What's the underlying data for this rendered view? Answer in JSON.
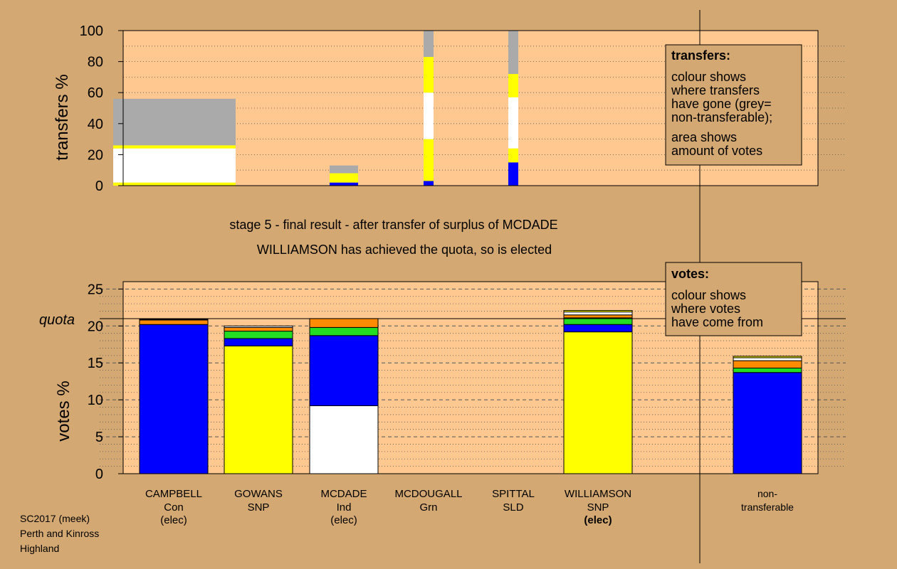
{
  "colors": {
    "background": "#d4a872",
    "plot_area": "#ffc890",
    "legend_box": "#d4a872",
    "Con": "#0000ff",
    "SNP": "#ffff00",
    "Ind": "#ffffff",
    "Grn": "#22dd22",
    "LD": "#ff8c00",
    "non_transferable": "#aaaaaa"
  },
  "captions": {
    "stage_line": "stage 5 - final result - after transfer of surplus of MCDADE",
    "elected_line": "WILLIAMSON has achieved the quota, so is elected",
    "footer": [
      "SC2017 (meek)",
      "Perth and Kinross",
      "Highland"
    ],
    "quota_label": "quota"
  },
  "legends": {
    "transfers": {
      "title": "transfers:",
      "lines1": [
        "colour shows",
        "where transfers",
        "have gone (grey=",
        "non-transferable);"
      ],
      "lines2": [
        "area shows",
        "amount of votes"
      ]
    },
    "votes": {
      "title": "votes:",
      "lines": [
        "colour shows",
        "where votes",
        "have come from"
      ]
    }
  },
  "chart_data": [
    {
      "type": "bar",
      "ylabel": "transfers %",
      "ylim": [
        0,
        100
      ],
      "yticks": [
        "0",
        "20",
        "40",
        "60",
        "80",
        "100"
      ],
      "grid": "dotted",
      "columns": [
        {
          "key": "campbell",
          "width_share": 1.0,
          "stack": [
            {
              "party": "SNP",
              "value": 2
            },
            {
              "party": "Ind",
              "value": 22
            },
            {
              "party": "SNP",
              "value": 2
            },
            {
              "party": "non_transferable",
              "value": 30
            }
          ]
        },
        {
          "key": "mcdade",
          "width_share": 0.24,
          "stack": [
            {
              "party": "Con",
              "value": 2
            },
            {
              "party": "SNP",
              "value": 6
            },
            {
              "party": "non_transferable",
              "value": 5
            }
          ]
        },
        {
          "key": "mcdougall",
          "width_share": 0.09,
          "stack": [
            {
              "party": "Con",
              "value": 3
            },
            {
              "party": "SNP",
              "value": 27
            },
            {
              "party": "Ind",
              "value": 30
            },
            {
              "party": "SNP",
              "value": 23
            },
            {
              "party": "non_transferable",
              "value": 17
            }
          ]
        },
        {
          "key": "spittal",
          "width_share": 0.09,
          "stack": [
            {
              "party": "Con",
              "value": 15
            },
            {
              "party": "SNP",
              "value": 9
            },
            {
              "party": "Ind",
              "value": 33
            },
            {
              "party": "SNP",
              "value": 15
            },
            {
              "party": "non_transferable",
              "value": 28
            }
          ]
        }
      ]
    },
    {
      "type": "bar",
      "ylabel": "votes %",
      "ylim": [
        0,
        26
      ],
      "yticks": [
        "0",
        "5",
        "10",
        "15",
        "20",
        "25"
      ],
      "quota": 21,
      "grid": "dashed",
      "categories": [
        {
          "name": "CAMPBELL",
          "party": "Con",
          "status": "(elec)",
          "bold_status": false
        },
        {
          "name": "GOWANS",
          "party": "SNP",
          "status": "",
          "bold_status": false
        },
        {
          "name": "MCDADE",
          "party": "Ind",
          "status": "(elec)",
          "bold_status": false
        },
        {
          "name": "MCDOUGALL",
          "party": "Grn",
          "status": "",
          "bold_status": false
        },
        {
          "name": "SPITTAL",
          "party": "SLD",
          "status": "",
          "bold_status": false
        },
        {
          "name": "WILLIAMSON",
          "party": "SNP",
          "status": "(elec)",
          "bold_status": true
        },
        {
          "name": "non-",
          "party": "transferable",
          "status": "",
          "bold_status": false
        }
      ],
      "series": [
        {
          "party": "Con",
          "values": [
            20.2,
            0,
            0,
            0,
            0,
            0,
            0
          ]
        },
        {
          "party": "SNP",
          "values": [
            0,
            17.3,
            0,
            0,
            0,
            19.2,
            0
          ]
        },
        {
          "party": "Ind",
          "values": [
            0,
            0,
            9.2,
            0,
            0,
            0,
            0
          ]
        },
        {
          "party": "Con2",
          "values": [
            0,
            1.0,
            9.5,
            0,
            0,
            1.0,
            13.7
          ]
        },
        {
          "party": "Grn",
          "values": [
            0,
            1.0,
            1.1,
            0,
            0,
            0.9,
            0.6
          ]
        },
        {
          "party": "LD",
          "values": [
            0.6,
            0.5,
            1.2,
            0,
            0,
            0.4,
            1.0
          ]
        },
        {
          "party": "Ind2",
          "values": [
            0.1,
            0.2,
            0,
            0,
            0,
            0.4,
            0.4
          ]
        },
        {
          "party": "SNP2",
          "values": [
            0,
            0,
            0,
            0,
            0,
            0.2,
            0.2
          ]
        }
      ]
    }
  ]
}
